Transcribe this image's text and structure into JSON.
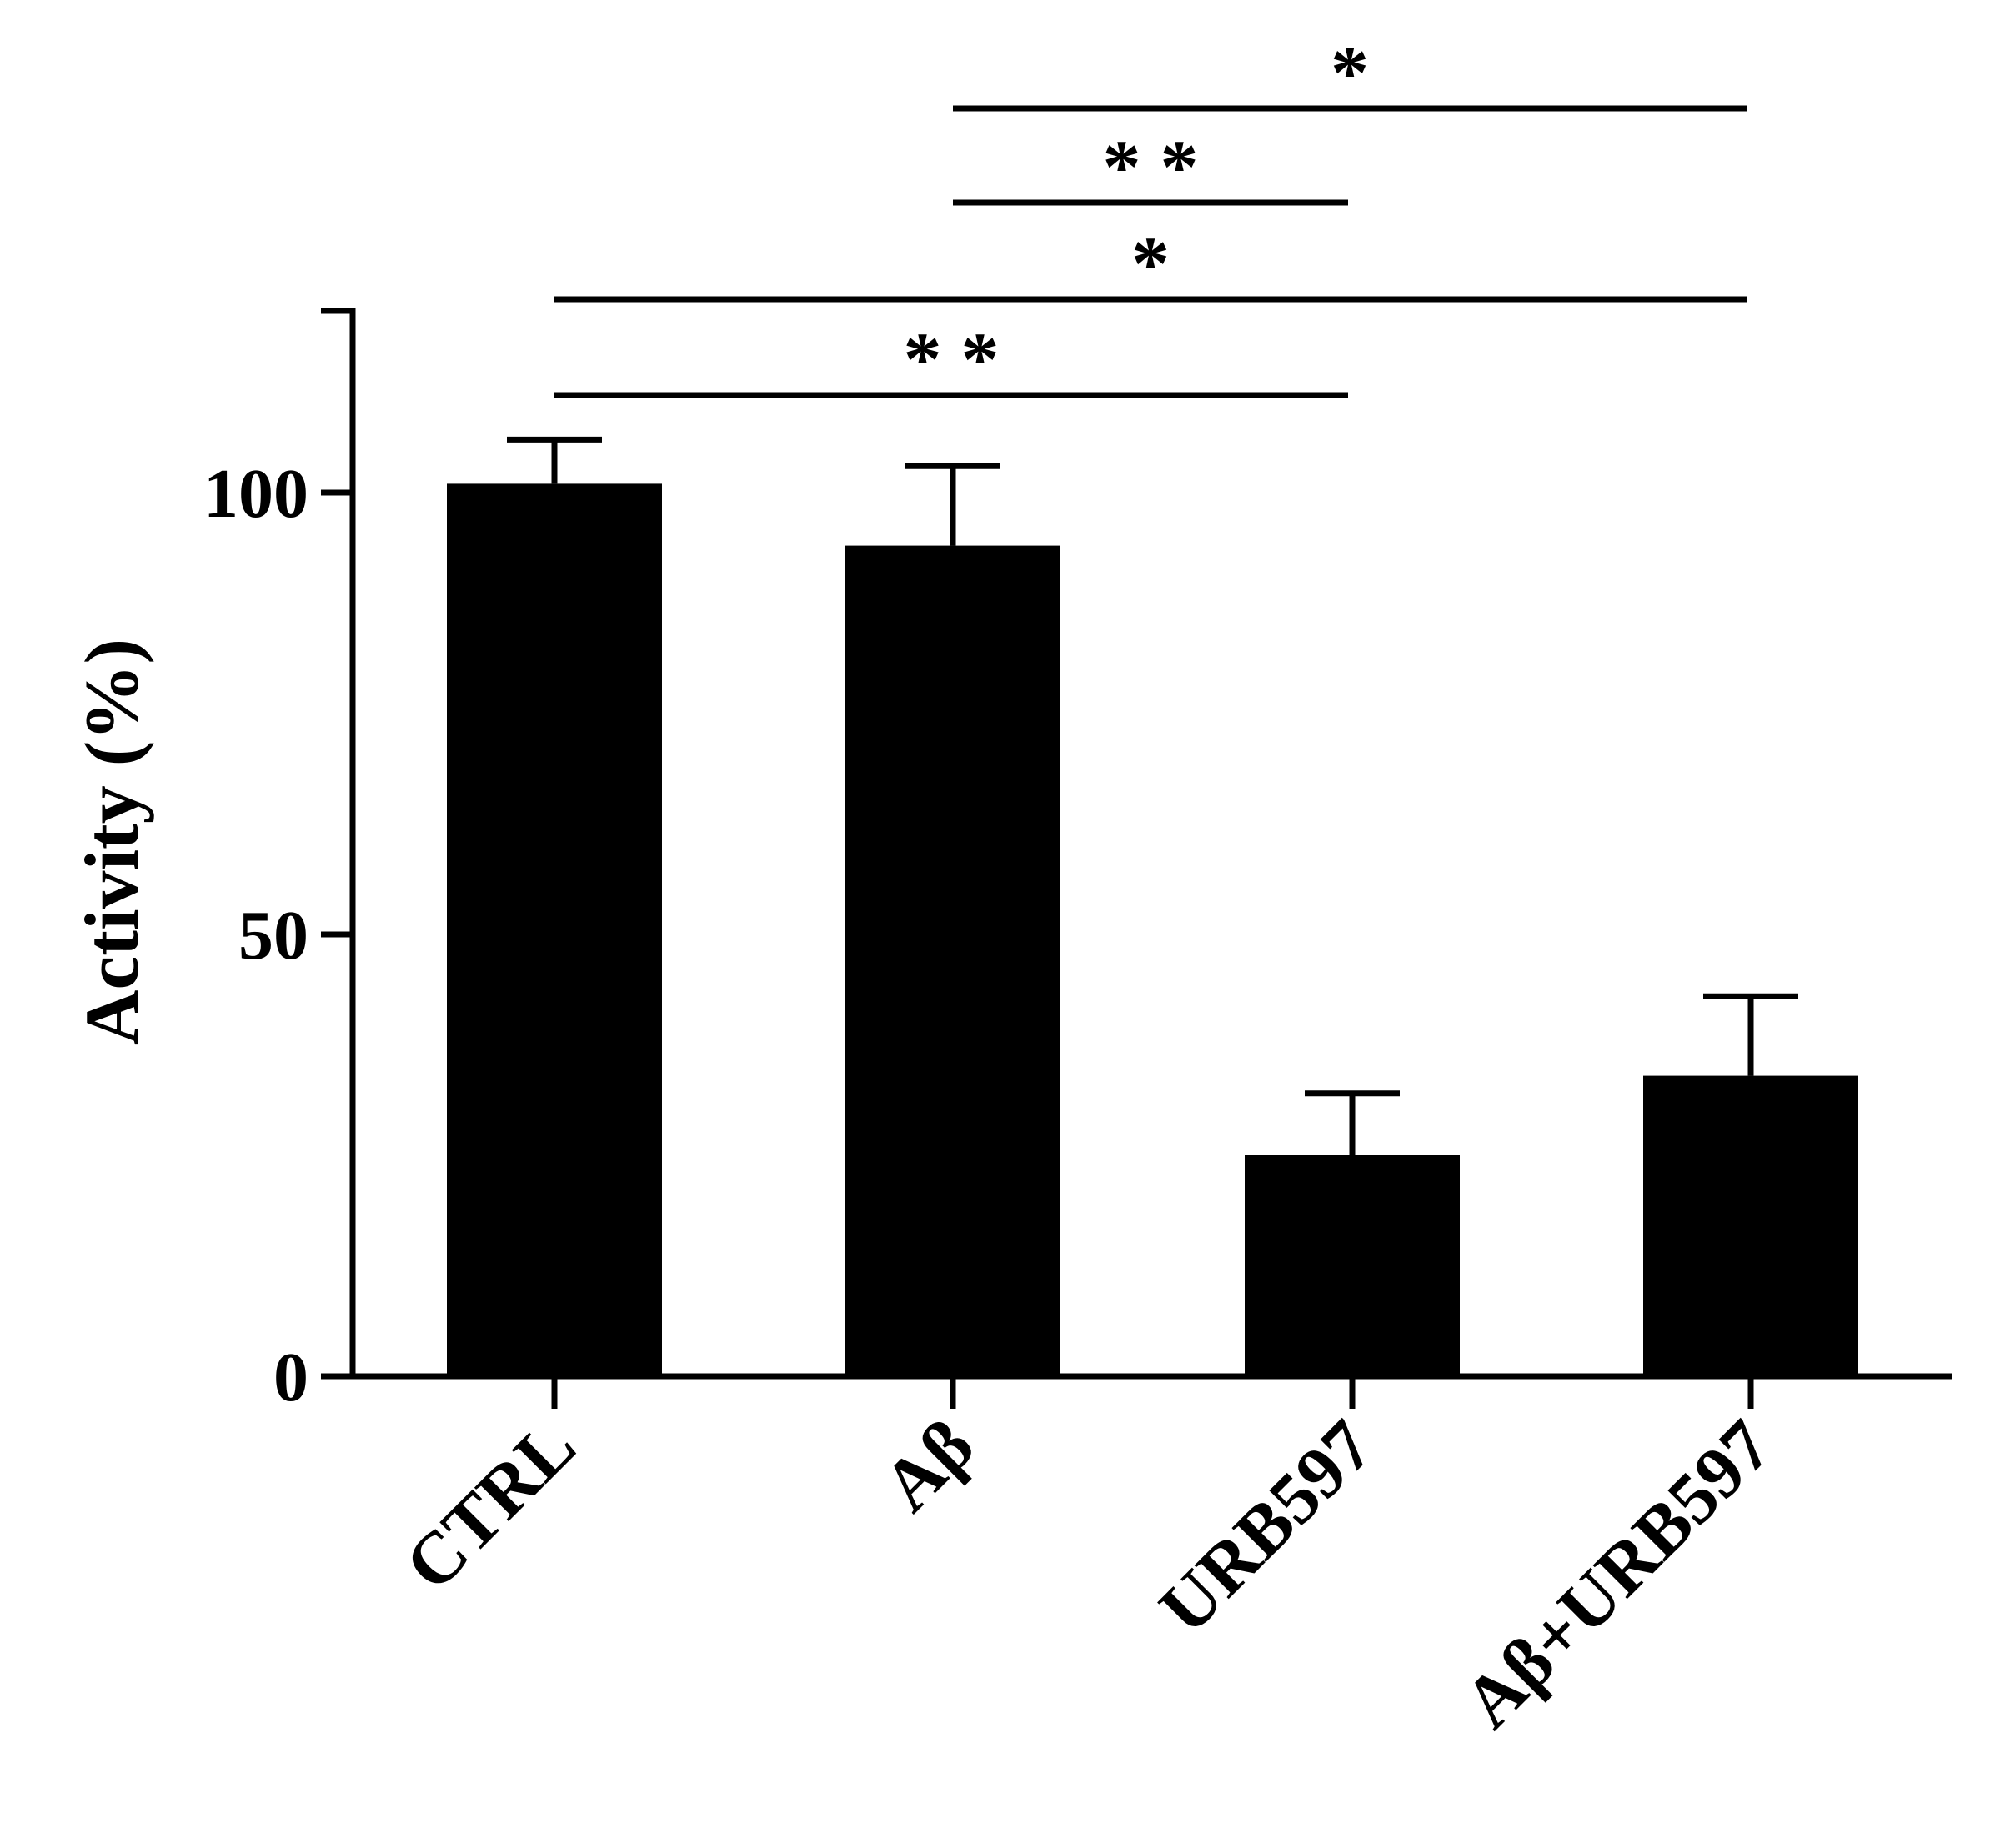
{
  "chart_data": {
    "type": "bar",
    "categories": [
      "CTRL",
      "Aβ",
      "URB597",
      "Aβ+URB597"
    ],
    "values": [
      101,
      94,
      25,
      34
    ],
    "errors": [
      5,
      9,
      7,
      9
    ],
    "title": "",
    "xlabel": "",
    "ylabel": "Activity (%)",
    "ylim": [
      0,
      120
    ],
    "yticks": [
      0,
      50,
      100
    ],
    "bar_color": "#000000",
    "grid": false,
    "significance": [
      {
        "from": 1,
        "to": 3,
        "label": "*"
      },
      {
        "from": 1,
        "to": 2,
        "label": "* *"
      },
      {
        "from": 0,
        "to": 3,
        "label": "*"
      },
      {
        "from": 0,
        "to": 2,
        "label": "* *"
      }
    ]
  }
}
